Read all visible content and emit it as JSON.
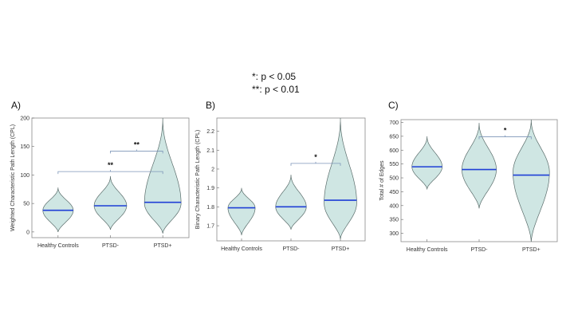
{
  "legend": {
    "line1": "*: p < 0.05",
    "line2": "**: p < 0.01"
  },
  "chart_data": [
    {
      "type": "violin",
      "panel": "A)",
      "ylabel": "Weighted Characteristic Path Length (CPL)",
      "categories": [
        "Healthy Controls",
        "PTSD-",
        "PTSD+"
      ],
      "ylim": [
        -10,
        200
      ],
      "yticks": [
        0,
        50,
        100,
        150,
        200
      ],
      "ytick_labels": [
        "0",
        "50",
        "100",
        "150",
        "200"
      ],
      "violins": [
        {
          "min": 0,
          "max": 78,
          "mode": 38,
          "median": 38,
          "halfwidth": 0.58
        },
        {
          "min": 4,
          "max": 98,
          "mode": 46,
          "median": 46,
          "halfwidth": 0.62
        },
        {
          "min": -2,
          "max": 200,
          "mode": 50,
          "median": 52,
          "halfwidth": 0.7
        }
      ],
      "significance": [
        {
          "from": 0,
          "to": 2,
          "y": 106,
          "label": "**"
        },
        {
          "from": 1,
          "to": 2,
          "y": 142,
          "label": "**"
        }
      ]
    },
    {
      "type": "violin",
      "panel": "B)",
      "ylabel": "Binary Characteristic Path Length (CPL)",
      "categories": [
        "Healthy Controls",
        "PTSD-",
        "PTSD+"
      ],
      "ylim": [
        1.62,
        2.27
      ],
      "yticks": [
        1.7,
        1.8,
        1.9,
        2.0,
        2.1,
        2.2
      ],
      "ytick_labels": [
        "1.7",
        "1.8",
        "1.9",
        "2",
        "2.1",
        "2.2"
      ],
      "violins": [
        {
          "min": 1.65,
          "max": 1.9,
          "mode": 1.795,
          "median": 1.795,
          "halfwidth": 0.55
        },
        {
          "min": 1.68,
          "max": 1.97,
          "mode": 1.8,
          "median": 1.8,
          "halfwidth": 0.62
        },
        {
          "min": 1.63,
          "max": 2.27,
          "mode": 1.82,
          "median": 1.835,
          "halfwidth": 0.66
        }
      ],
      "significance": [
        {
          "from": 1,
          "to": 2,
          "y": 2.03,
          "label": "*"
        }
      ]
    },
    {
      "type": "violin",
      "panel": "C)",
      "ylabel": "Total # of Edges",
      "categories": [
        "Healthy Controls",
        "PTSD-",
        "PTSD+"
      ],
      "ylim": [
        270,
        710
      ],
      "yticks": [
        300,
        350,
        400,
        450,
        500,
        550,
        600,
        650,
        700
      ],
      "ytick_labels": [
        "300",
        "350",
        "400",
        "450",
        "500",
        "550",
        "600",
        "650",
        "700"
      ],
      "violins": [
        {
          "min": 460,
          "max": 650,
          "mode": 540,
          "median": 540,
          "halfwidth": 0.58
        },
        {
          "min": 390,
          "max": 698,
          "mode": 530,
          "median": 530,
          "halfwidth": 0.66
        },
        {
          "min": 270,
          "max": 710,
          "mode": 520,
          "median": 510,
          "halfwidth": 0.7
        }
      ],
      "significance": [
        {
          "from": 1,
          "to": 2,
          "y": 648,
          "label": "*"
        }
      ]
    }
  ]
}
